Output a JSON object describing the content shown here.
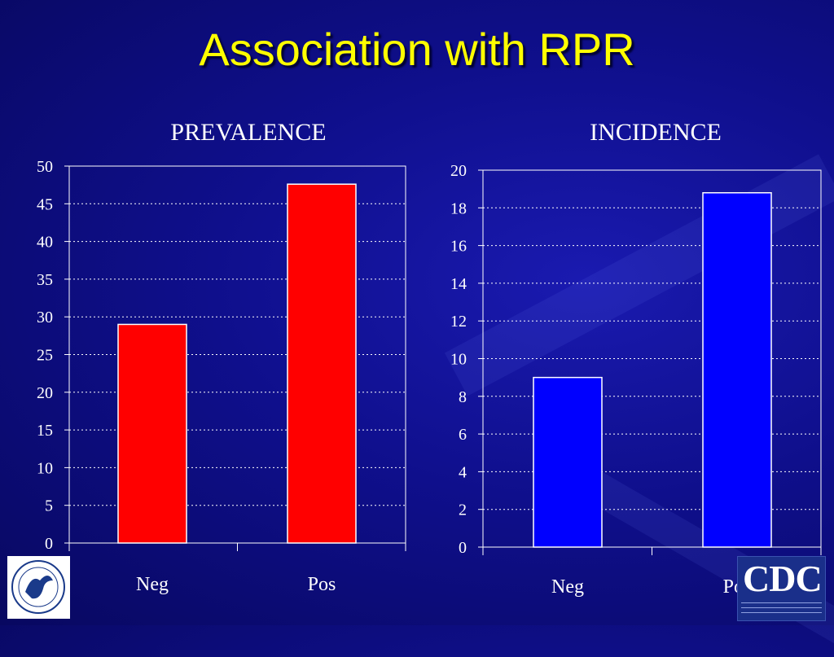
{
  "title": "Association with RPR",
  "colors": {
    "prevalence_bar": "#ff0000",
    "incidence_bar": "#0000ff",
    "title": "#ffff00",
    "background": "#0f0f8c"
  },
  "logos": {
    "left": "hhs-eagle-seal",
    "right_text": "CDC"
  },
  "chart_data": [
    {
      "type": "bar",
      "title": "PREVALENCE",
      "categories": [
        "Neg",
        "Pos"
      ],
      "values": [
        29,
        47.6
      ],
      "ylim": [
        0,
        50
      ],
      "yticks": [
        0,
        5,
        10,
        15,
        20,
        25,
        30,
        35,
        40,
        45,
        50
      ],
      "grid": true,
      "xlabel": "",
      "ylabel": ""
    },
    {
      "type": "bar",
      "title": "INCIDENCE",
      "categories": [
        "Neg",
        "Pos"
      ],
      "values": [
        9,
        18.8
      ],
      "ylim": [
        0,
        20
      ],
      "yticks": [
        0,
        2,
        4,
        6,
        8,
        10,
        12,
        14,
        16,
        18,
        20
      ],
      "grid": true,
      "xlabel": "",
      "ylabel": ""
    }
  ]
}
